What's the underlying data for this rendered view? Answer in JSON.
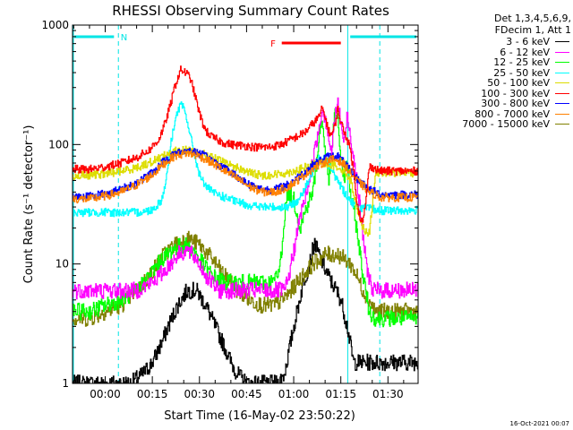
{
  "chart_data": {
    "type": "line",
    "title": "RHESSI Observing Summary Count Rates",
    "xlabel": "Start Time (16-May-02 23:50:22)",
    "ylabel": "Count Rate (s⁻¹ detector⁻¹)",
    "yscale": "log",
    "ylim": [
      1,
      1000
    ],
    "xlim_minutes": [
      -10.4,
      99.6
    ],
    "x_ticks": [
      "00:00",
      "00:15",
      "00:30",
      "00:45",
      "01:00",
      "01:15",
      "01:30"
    ],
    "y_ticks": [
      "1",
      "10",
      "100",
      "1000"
    ],
    "legend_title": [
      "Det 1,3,4,5,6,9,",
      "FDecim 1, Att 1"
    ],
    "legend_placement": "right",
    "flags": [
      {
        "label": "N",
        "color": "#00e5e5"
      },
      {
        "label": "F",
        "color": "#ff0000"
      }
    ],
    "series": [
      {
        "name": "3 - 6 keV",
        "color": "#000000",
        "x": [
          -10.4,
          -5,
          0,
          5,
          8,
          10,
          12,
          15,
          18,
          20,
          23,
          26,
          29,
          32,
          35,
          38,
          40,
          42,
          45,
          50,
          55,
          57,
          60,
          63,
          65,
          66.5,
          68,
          70,
          72,
          73.5,
          75,
          77,
          79
        ],
        "y": [
          1,
          1,
          1,
          1,
          1,
          1.1,
          1.2,
          1.5,
          2.2,
          3,
          4.5,
          6,
          6,
          4.5,
          3,
          2,
          1.5,
          1.2,
          1,
          1,
          1,
          1.2,
          3,
          7,
          10,
          15,
          12,
          9,
          7,
          6,
          5,
          3,
          1.5
        ]
      },
      {
        "name": "6 - 12 keV",
        "color": "#ff00ff",
        "x": [
          -10.4,
          -3,
          5,
          10,
          15,
          20,
          23,
          26,
          29,
          32,
          36,
          40,
          45,
          50,
          55,
          57,
          58,
          60,
          62,
          64,
          66,
          68,
          69,
          70,
          71,
          72,
          73,
          74,
          75,
          76,
          77,
          78,
          79,
          80,
          81,
          83,
          85
        ],
        "y": [
          6,
          6,
          6,
          6,
          7,
          9.5,
          12,
          13,
          11,
          8,
          6,
          6,
          6,
          6,
          6,
          6,
          7,
          13,
          25,
          40,
          70,
          140,
          200,
          170,
          120,
          80,
          170,
          220,
          150,
          100,
          180,
          120,
          80,
          50,
          30,
          10,
          6
        ]
      },
      {
        "name": "12 - 25 keV",
        "color": "#00ff00",
        "x": [
          -10.4,
          -5,
          0,
          5,
          10,
          14,
          18,
          22,
          25,
          28,
          31,
          34,
          38,
          42,
          46,
          50,
          53,
          55,
          56,
          57,
          58,
          60,
          62,
          64,
          66,
          67,
          68,
          69,
          70,
          71,
          72,
          73,
          74,
          75,
          76,
          77,
          78,
          80,
          82,
          84,
          86,
          87.6
        ],
        "y": [
          4,
          4,
          4.5,
          5,
          6,
          8,
          11,
          13.5,
          14.5,
          13,
          10,
          8,
          7,
          7,
          7,
          7,
          7,
          8,
          12,
          25,
          40,
          35,
          20,
          30,
          40,
          60,
          120,
          160,
          90,
          50,
          80,
          200,
          150,
          80,
          50,
          70,
          40,
          20,
          8,
          4,
          3.5,
          3.5
        ]
      },
      {
        "name": "25 - 50 keV",
        "color": "#00ffff",
        "x": [
          -10.4,
          -5,
          0,
          5,
          10,
          14,
          16,
          18,
          19,
          20,
          21,
          22,
          23,
          24,
          25,
          26,
          27,
          28,
          29,
          30,
          32,
          34,
          38,
          42,
          46,
          50,
          54,
          58,
          60,
          62,
          64,
          66,
          68,
          70,
          72,
          74,
          76,
          78,
          80,
          84,
          87.6
        ],
        "y": [
          27,
          27,
          27,
          27,
          27,
          28,
          30,
          35,
          45,
          70,
          110,
          150,
          190,
          215,
          200,
          160,
          120,
          90,
          70,
          55,
          45,
          40,
          36,
          33,
          31,
          30,
          30,
          30,
          32,
          36,
          45,
          60,
          80,
          75,
          60,
          50,
          40,
          34,
          30,
          29,
          28
        ]
      },
      {
        "name": "50 - 100 keV",
        "color": "#dddd00",
        "x": [
          -10.4,
          -5,
          0,
          5,
          10,
          15,
          18,
          22,
          26,
          30,
          34,
          38,
          42,
          46,
          50,
          54,
          58,
          62,
          66,
          70,
          72,
          74,
          76,
          78,
          79,
          80,
          82,
          84,
          86,
          87.6
        ],
        "y": [
          55,
          55,
          57,
          60,
          64,
          72,
          80,
          88,
          90,
          85,
          78,
          70,
          64,
          58,
          55,
          56,
          58,
          62,
          68,
          70,
          68,
          65,
          60,
          50,
          40,
          30,
          20,
          18,
          58,
          58
        ]
      },
      {
        "name": "100 - 300 keV",
        "color": "#ff0000",
        "x": [
          -10.4,
          -5,
          0,
          5,
          10,
          14,
          17,
          19,
          21,
          22,
          23,
          24,
          25,
          26,
          27,
          28,
          29,
          30,
          31,
          32,
          34,
          37,
          40,
          44,
          48,
          52,
          56,
          59,
          62,
          64,
          66,
          68,
          69,
          70,
          71,
          72,
          73,
          74,
          75,
          76,
          77,
          78,
          79,
          80,
          81,
          82,
          83,
          84,
          85,
          86,
          87.6
        ],
        "y": [
          62,
          62,
          65,
          70,
          78,
          90,
          110,
          150,
          230,
          300,
          360,
          420,
          410,
          390,
          360,
          290,
          230,
          180,
          150,
          130,
          115,
          105,
          100,
          98,
          95,
          95,
          100,
          110,
          120,
          130,
          150,
          170,
          200,
          170,
          130,
          120,
          140,
          200,
          150,
          130,
          110,
          90,
          60,
          35,
          25,
          22,
          35,
          65,
          65,
          62,
          60
        ]
      },
      {
        "name": "300 - 800 keV",
        "color": "#0000ff",
        "x": [
          -10.4,
          -5,
          0,
          5,
          10,
          15,
          18,
          22,
          26,
          30,
          34,
          38,
          42,
          46,
          50,
          54,
          58,
          62,
          66,
          70,
          72,
          74,
          76,
          78,
          80,
          82,
          84,
          86,
          87.6
        ],
        "y": [
          37,
          37,
          39,
          42,
          48,
          58,
          70,
          84,
          90,
          84,
          74,
          63,
          54,
          46,
          42,
          42,
          46,
          55,
          67,
          78,
          80,
          80,
          70,
          60,
          52,
          47,
          42,
          40,
          38
        ]
      },
      {
        "name": "800 - 7000 keV",
        "color": "#ff8000",
        "x": [
          -10.4,
          -5,
          0,
          5,
          10,
          15,
          18,
          22,
          26,
          30,
          34,
          38,
          42,
          46,
          50,
          54,
          58,
          62,
          66,
          70,
          72,
          74,
          76,
          78,
          80,
          82,
          84,
          86,
          87.6
        ],
        "y": [
          35,
          35,
          37,
          40,
          46,
          56,
          67,
          80,
          85,
          80,
          70,
          60,
          52,
          44,
          40,
          40,
          44,
          52,
          63,
          72,
          75,
          74,
          68,
          58,
          50,
          45,
          40,
          38,
          36
        ]
      },
      {
        "name": "7000 - 15000 keV",
        "color": "#808000",
        "x": [
          -10.4,
          -5,
          0,
          5,
          10,
          14,
          18,
          22,
          26,
          30,
          34,
          38,
          42,
          46,
          50,
          54,
          58,
          62,
          66,
          70,
          74,
          76,
          78,
          80,
          82,
          84,
          86,
          87.6
        ],
        "y": [
          3.5,
          3.5,
          4,
          4.5,
          6,
          8,
          11.5,
          14.5,
          16.5,
          14.5,
          11,
          8,
          6,
          5,
          4.5,
          4.5,
          5.5,
          7.5,
          10,
          12,
          12,
          11,
          10,
          8,
          6,
          5,
          4,
          4
        ]
      }
    ]
  },
  "timestamp": "16-Oct-2021 00:07"
}
